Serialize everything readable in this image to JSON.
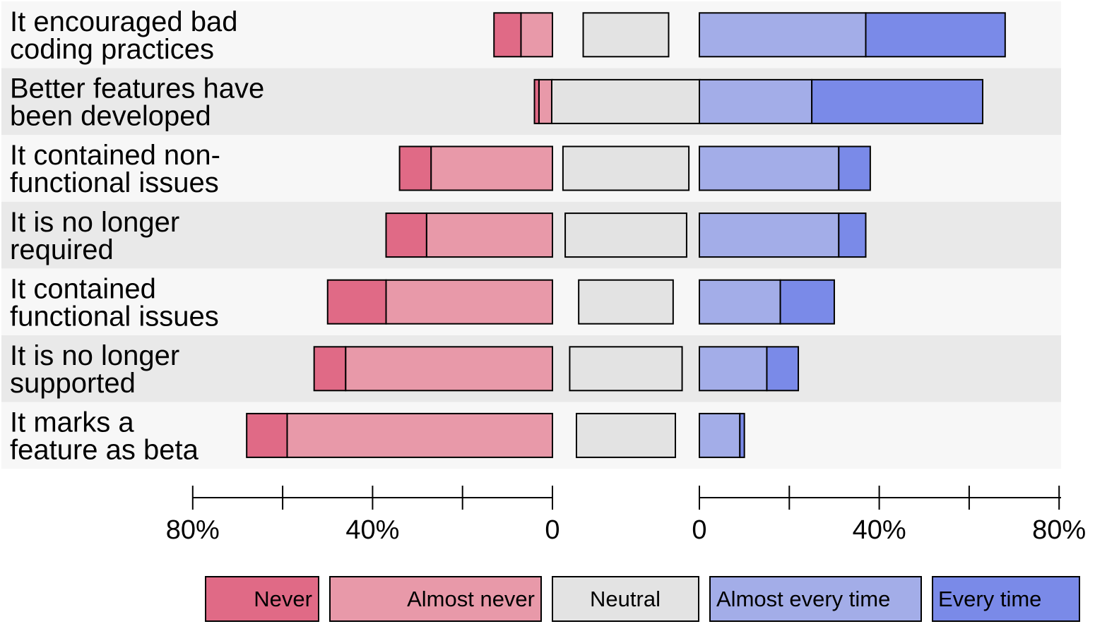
{
  "chart_data": {
    "type": "bar",
    "subtype": "diverging-stacked-bar",
    "categories": [
      [
        "It encouraged bad",
        "coding practices"
      ],
      [
        "Better features have",
        "been developed"
      ],
      [
        "It contained non-",
        "functional issues"
      ],
      [
        "It is no longer",
        "required"
      ],
      [
        "It contained",
        "functional issues"
      ],
      [
        "It is no longer",
        "supported"
      ],
      [
        "It marks a",
        "feature as beta"
      ]
    ],
    "series": [
      {
        "name": "Never",
        "side": "negative",
        "color": "#e06a86",
        "values": [
          6,
          1,
          7,
          9,
          13,
          7,
          9
        ]
      },
      {
        "name": "Almost never",
        "side": "negative",
        "color": "#e899a9",
        "values": [
          7,
          3,
          27,
          28,
          37,
          46,
          59
        ]
      },
      {
        "name": "Neutral",
        "side": "neutral",
        "color": "#e3e3e3",
        "values": [
          19,
          33,
          28,
          27,
          21,
          25,
          22
        ]
      },
      {
        "name": "Almost every time",
        "side": "positive",
        "color": "#a3ade8",
        "values": [
          37,
          25,
          31,
          31,
          18,
          15,
          9
        ]
      },
      {
        "name": "Every time",
        "side": "positive",
        "color": "#7a8ae8",
        "values": [
          31,
          38,
          7,
          6,
          12,
          7,
          1
        ]
      }
    ],
    "x_ticks_left": [
      "80%",
      "",
      "40%",
      "",
      "0"
    ],
    "x_ticks_right": [
      "0",
      "",
      "40%",
      "",
      "80%"
    ],
    "xlim": [
      0,
      80
    ],
    "legend_position": "bottom",
    "row_background_colors": [
      "#f7f7f7",
      "#e9e9e9"
    ]
  }
}
